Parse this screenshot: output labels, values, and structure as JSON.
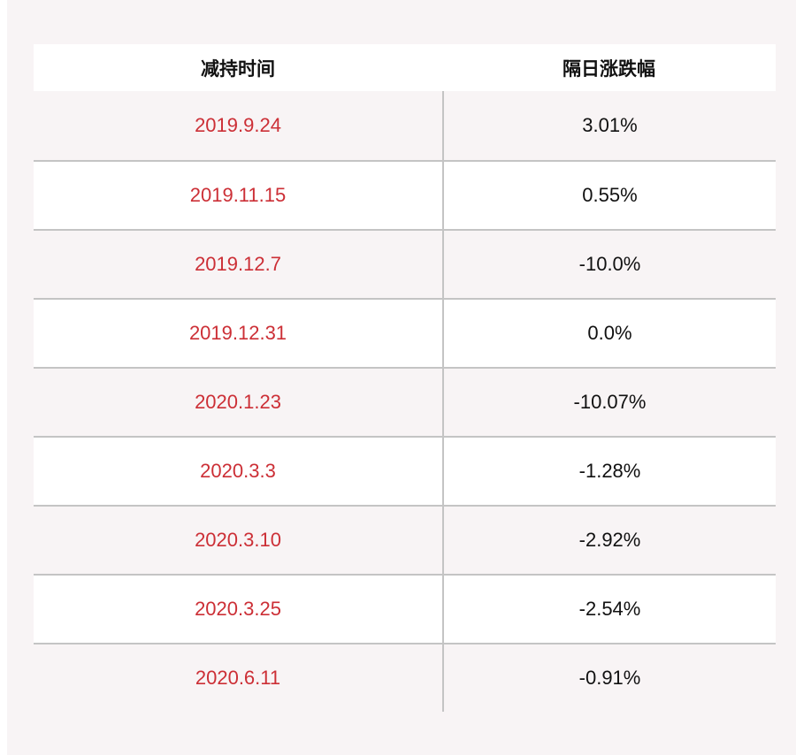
{
  "table": {
    "header": [
      "减持时间",
      "隔日涨跌幅"
    ],
    "rows": [
      [
        "2019.9.24",
        "3.01%"
      ],
      [
        "2019.11.15",
        "0.55%"
      ],
      [
        "2019.12.7",
        "-10.0%"
      ],
      [
        "2019.12.31",
        "0.0%"
      ],
      [
        "2020.1.23",
        "-10.07%"
      ],
      [
        "2020.3.3",
        "-1.28%"
      ],
      [
        "2020.3.10",
        "-2.92%"
      ],
      [
        "2020.3.25",
        "-2.54%"
      ],
      [
        "2020.6.11",
        "-0.91%"
      ]
    ]
  }
}
